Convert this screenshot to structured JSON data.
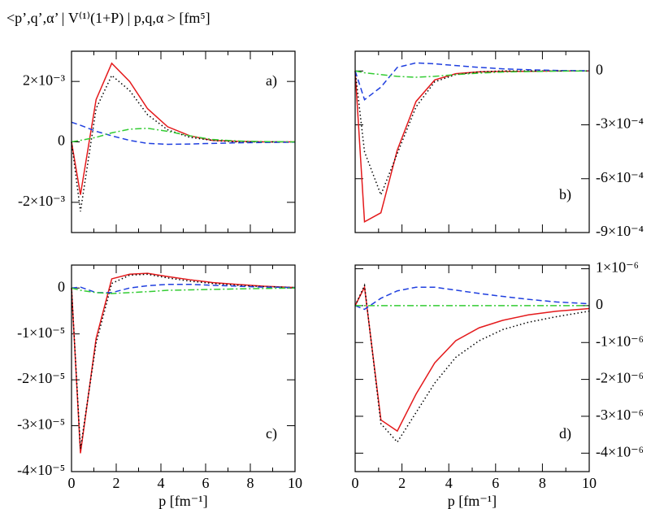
{
  "title": "<p’,q’,α’ | V⁽¹⁾(1+P) | p,q,α > [fm⁵]",
  "chart_data": [
    {
      "type": "line",
      "label": "a)",
      "label_corner": "top-right",
      "yaxis_side": "left",
      "xtick_labels": false,
      "x": [
        0,
        0.4,
        1.1,
        1.8,
        2.6,
        3.4,
        4.3,
        5.3,
        6.3,
        7.4,
        8.6,
        10
      ],
      "xlim": [
        0,
        10
      ],
      "xticks": [
        0,
        2,
        4,
        6,
        8,
        10
      ],
      "ylim": [
        -0.003,
        0.003
      ],
      "yticks": [
        {
          "value": -0.002,
          "label": "-2×10⁻³"
        },
        0,
        {
          "value": 0.002,
          "label": "2×10⁻³"
        }
      ],
      "series": [
        {
          "color": "#e41a1c",
          "style": "solid",
          "values": [
            0,
            -0.00175,
            0.0014,
            0.0026,
            0.002,
            0.0011,
            0.0005,
            0.0002,
            5e-05,
            2e-05,
            0,
            0
          ]
        },
        {
          "color": "#000000",
          "style": "dotted",
          "values": [
            0,
            -0.0023,
            0.0011,
            0.0022,
            0.0017,
            0.0009,
            0.0004,
            0.00015,
            5e-05,
            0,
            0,
            0
          ]
        },
        {
          "color": "#1f3fdf",
          "style": "dashed",
          "values": [
            0.00065,
            0.00055,
            0.00035,
            0.0002,
            5e-05,
            -5e-05,
            -8e-05,
            -7e-05,
            -5e-05,
            -3e-05,
            -2e-05,
            -1e-05
          ]
        },
        {
          "color": "#33cc33",
          "style": "dashdot",
          "values": [
            0,
            5e-05,
            0.00015,
            0.0003,
            0.00042,
            0.00045,
            0.00035,
            0.0002,
            8e-05,
            3e-05,
            1e-05,
            0
          ]
        }
      ]
    },
    {
      "type": "line",
      "label": "b)",
      "label_corner": "bottom-right",
      "yaxis_side": "right",
      "xtick_labels": false,
      "x": [
        0,
        0.4,
        1.1,
        1.8,
        2.6,
        3.4,
        4.3,
        5.3,
        6.3,
        7.4,
        8.6,
        10
      ],
      "xlim": [
        0,
        10
      ],
      "xticks": [
        0,
        2,
        4,
        6,
        8,
        10
      ],
      "ylim": [
        -0.0009,
        0.00011
      ],
      "yticks": [
        {
          "value": -0.0009,
          "label": "-9×10⁻⁴"
        },
        {
          "value": -0.0006,
          "label": "-6×10⁻⁴"
        },
        {
          "value": -0.0003,
          "label": "-3×10⁻⁴"
        },
        0
      ],
      "series": [
        {
          "color": "#e41a1c",
          "style": "solid",
          "values": [
            0,
            -0.00084,
            -0.00079,
            -0.00044,
            -0.00017,
            -5e-05,
            -1.5e-05,
            -5e-06,
            -2e-06,
            -2e-06,
            0,
            0
          ]
        },
        {
          "color": "#000000",
          "style": "dotted",
          "values": [
            0,
            -0.00045,
            -0.00069,
            -0.00046,
            -0.0002,
            -6e-05,
            -2e-05,
            -5e-06,
            0,
            0,
            0,
            0
          ]
        },
        {
          "color": "#1f3fdf",
          "style": "dashed",
          "values": [
            0,
            -0.00016,
            -9e-05,
            2e-05,
            4.5e-05,
            4e-05,
            3e-05,
            2e-05,
            1.2e-05,
            7e-06,
            3e-06,
            1e-06
          ]
        },
        {
          "color": "#33cc33",
          "style": "dashdot",
          "values": [
            0,
            -1e-05,
            -2e-05,
            -3e-05,
            -3.5e-05,
            -3e-05,
            -2e-05,
            -1.2e-05,
            -6e-06,
            -3e-06,
            -1e-06,
            0
          ]
        }
      ]
    },
    {
      "type": "line",
      "label": "c)",
      "label_corner": "bottom-right",
      "yaxis_side": "left",
      "xtick_labels": true,
      "xlabel": "p [fm⁻¹]",
      "x": [
        0,
        0.4,
        1.1,
        1.8,
        2.6,
        3.4,
        4.3,
        5.3,
        6.3,
        7.4,
        8.6,
        10
      ],
      "xlim": [
        0,
        10
      ],
      "xticks": [
        0,
        2,
        4,
        6,
        8,
        10
      ],
      "ylim": [
        -4e-05,
        5e-06
      ],
      "yticks": [
        {
          "value": -4e-05,
          "label": "-4×10⁻⁵"
        },
        {
          "value": -3e-05,
          "label": "-3×10⁻⁵"
        },
        {
          "value": -2e-05,
          "label": "-2×10⁻⁵"
        },
        {
          "value": -1e-05,
          "label": "-1×10⁻⁵"
        },
        0
      ],
      "series": [
        {
          "color": "#e41a1c",
          "style": "solid",
          "values": [
            0,
            -3.6e-05,
            -1.1e-05,
            2e-06,
            3e-06,
            3.2e-06,
            2.5e-06,
            1.8e-06,
            1.2e-06,
            8e-07,
            4e-07,
            1e-07
          ]
        },
        {
          "color": "#000000",
          "style": "dotted",
          "values": [
            0,
            -3.5e-05,
            -1.2e-05,
            1e-06,
            2.8e-06,
            3e-06,
            2.2e-06,
            1.5e-06,
            1e-06,
            6e-07,
            3e-07,
            1e-07
          ]
        },
        {
          "color": "#1f3fdf",
          "style": "dashed",
          "values": [
            0,
            2e-07,
            -1e-06,
            -1e-06,
            0,
            5e-07,
            8e-07,
            8e-07,
            6e-07,
            4e-07,
            2e-07,
            1e-07
          ]
        },
        {
          "color": "#33cc33",
          "style": "dashdot",
          "values": [
            0,
            -5e-07,
            -1e-06,
            -1.2e-06,
            -1e-06,
            -8e-07,
            -5e-07,
            -4e-07,
            -3e-07,
            -2e-07,
            -1e-07,
            0
          ]
        }
      ]
    },
    {
      "type": "line",
      "label": "d)",
      "label_corner": "bottom-right",
      "yaxis_side": "right",
      "xtick_labels": true,
      "xlabel": "p [fm⁻¹]",
      "x": [
        0,
        0.4,
        1.1,
        1.8,
        2.6,
        3.4,
        4.3,
        5.3,
        6.3,
        7.4,
        8.6,
        10
      ],
      "xlim": [
        0,
        10
      ],
      "xticks": [
        0,
        2,
        4,
        6,
        8,
        10
      ],
      "ylim": [
        -4.5e-06,
        1.1e-06
      ],
      "yticks": [
        {
          "value": -4e-06,
          "label": "-4×10⁻⁶"
        },
        {
          "value": -3e-06,
          "label": "-3×10⁻⁶"
        },
        {
          "value": -2e-06,
          "label": "-2×10⁻⁶"
        },
        {
          "value": -1e-06,
          "label": "-1×10⁻⁶"
        },
        0,
        {
          "value": 1e-06,
          "label": "1×10⁻⁶"
        }
      ],
      "series": [
        {
          "color": "#e41a1c",
          "style": "solid",
          "values": [
            0,
            5e-07,
            -3.1e-06,
            -3.4e-06,
            -2.4e-06,
            -1.55e-06,
            -9.5e-07,
            -6e-07,
            -4e-07,
            -2.5e-07,
            -1.5e-07,
            -8e-08
          ]
        },
        {
          "color": "#000000",
          "style": "dotted",
          "values": [
            0,
            5.5e-07,
            -3.2e-06,
            -3.7e-06,
            -2.9e-06,
            -2.1e-06,
            -1.4e-06,
            -9.5e-07,
            -6.5e-07,
            -4.5e-07,
            -3e-07,
            -1.5e-07
          ]
        },
        {
          "color": "#1f3fdf",
          "style": "dashed",
          "values": [
            0,
            -1e-07,
            2e-07,
            4e-07,
            5e-07,
            5e-07,
            4.2e-07,
            3.3e-07,
            2.5e-07,
            1.7e-07,
            1e-07,
            5e-08
          ]
        },
        {
          "color": "#33cc33",
          "style": "dashdot",
          "values": [
            0,
            0,
            0,
            0,
            0,
            0,
            0,
            0,
            0,
            0,
            0,
            0
          ]
        }
      ]
    }
  ]
}
